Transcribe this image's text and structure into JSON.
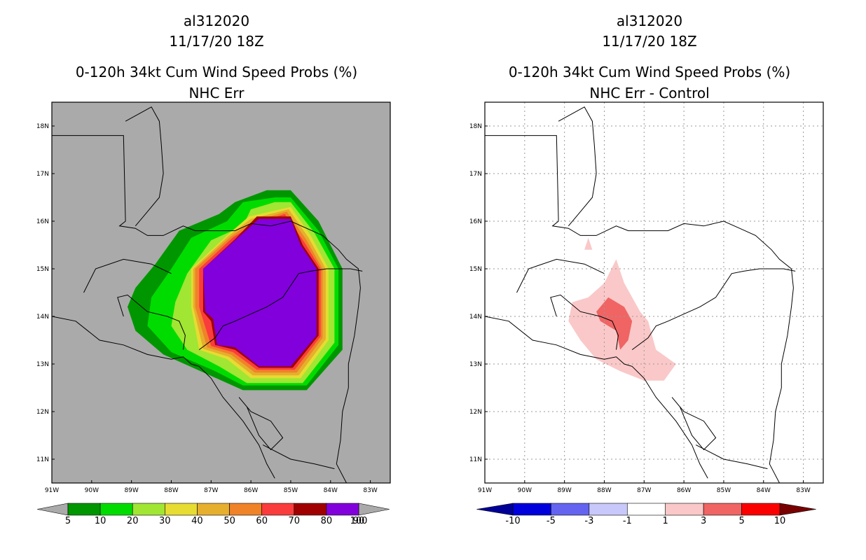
{
  "colors": {
    "land_gray": "#aaaaaa",
    "coast": "#000000",
    "grid": "#9a9a9a"
  },
  "chart_data": [
    {
      "type": "heatmap",
      "id": "left",
      "title_lines": [
        "al312020",
        "11/17/20 18Z",
        "0-120h 34kt Cum Wind Speed Probs (%)",
        "NHC Err"
      ],
      "xlabel": "",
      "ylabel": "",
      "lon_range": [
        -91,
        -82.5
      ],
      "lat_range": [
        10.5,
        18.5
      ],
      "x_ticks": [
        "91W",
        "90W",
        "89W",
        "88W",
        "87W",
        "86W",
        "85W",
        "84W",
        "83W"
      ],
      "y_ticks": [
        "11N",
        "12N",
        "13N",
        "14N",
        "15N",
        "16N",
        "17N",
        "18N"
      ],
      "grid": false,
      "background": "#aaaaaa",
      "colorbar": {
        "labels": [
          "5",
          "10",
          "20",
          "30",
          "40",
          "50",
          "60",
          "70",
          "80",
          "90",
          "100"
        ],
        "colors": [
          "#009600",
          "#00dc00",
          "#a0e632",
          "#e6dc32",
          "#e6af2d",
          "#f08228",
          "#fa3c3c",
          "#a00000",
          "#8200dc"
        ],
        "end_colors": [
          "#aaaaaa",
          "#aaaaaa"
        ]
      },
      "contours": [
        {
          "level": 5,
          "color": "#009600",
          "points": [
            [
              -88.4,
              15.1
            ],
            [
              -87.8,
              15.8
            ],
            [
              -86.8,
              16.15
            ],
            [
              -86.4,
              16.4
            ],
            [
              -85.6,
              16.65
            ],
            [
              -85.0,
              16.65
            ],
            [
              -84.3,
              16.0
            ],
            [
              -83.7,
              15.0
            ],
            [
              -83.7,
              13.3
            ],
            [
              -84.6,
              12.45
            ],
            [
              -86.2,
              12.45
            ],
            [
              -87.0,
              12.75
            ],
            [
              -88.2,
              13.2
            ],
            [
              -88.9,
              13.7
            ],
            [
              -89.1,
              14.2
            ],
            [
              -88.9,
              14.6
            ]
          ]
        },
        {
          "level": 10,
          "color": "#00dc00",
          "points": [
            [
              -88.0,
              15.0
            ],
            [
              -87.5,
              15.65
            ],
            [
              -86.6,
              16.0
            ],
            [
              -86.2,
              16.4
            ],
            [
              -85.4,
              16.5
            ],
            [
              -85.0,
              16.5
            ],
            [
              -84.3,
              15.8
            ],
            [
              -83.8,
              15.0
            ],
            [
              -83.8,
              13.4
            ],
            [
              -84.6,
              12.55
            ],
            [
              -86.2,
              12.55
            ],
            [
              -86.9,
              12.85
            ],
            [
              -88.0,
              13.25
            ],
            [
              -88.6,
              13.8
            ],
            [
              -88.5,
              14.4
            ]
          ]
        },
        {
          "level": 20,
          "color": "#a0e632",
          "points": [
            [
              -87.6,
              14.9
            ],
            [
              -87.0,
              15.6
            ],
            [
              -86.2,
              15.9
            ],
            [
              -86.0,
              16.25
            ],
            [
              -85.4,
              16.4
            ],
            [
              -85.0,
              16.4
            ],
            [
              -84.4,
              15.75
            ],
            [
              -83.9,
              15.0
            ],
            [
              -83.9,
              13.45
            ],
            [
              -84.7,
              12.6
            ],
            [
              -86.1,
              12.6
            ],
            [
              -86.8,
              12.95
            ],
            [
              -87.6,
              13.3
            ],
            [
              -88.0,
              13.8
            ],
            [
              -87.9,
              14.3
            ]
          ]
        },
        {
          "level": 30,
          "color": "#e6dc32",
          "points": [
            [
              -87.5,
              15.0
            ],
            [
              -86.6,
              15.7
            ],
            [
              -86.05,
              16.1
            ],
            [
              -85.0,
              16.3
            ],
            [
              -84.5,
              15.7
            ],
            [
              -84.05,
              15.0
            ],
            [
              -84.05,
              13.5
            ],
            [
              -84.75,
              12.7
            ],
            [
              -86.0,
              12.7
            ],
            [
              -86.6,
              13.1
            ],
            [
              -87.3,
              13.3
            ],
            [
              -87.5,
              14.2
            ]
          ]
        },
        {
          "level": 40,
          "color": "#e6af2d",
          "points": [
            [
              -87.45,
              15.0
            ],
            [
              -86.55,
              15.7
            ],
            [
              -86.0,
              16.05
            ],
            [
              -85.05,
              16.25
            ],
            [
              -84.55,
              15.65
            ],
            [
              -84.12,
              15.0
            ],
            [
              -84.12,
              13.52
            ],
            [
              -84.8,
              12.76
            ],
            [
              -85.95,
              12.76
            ],
            [
              -86.55,
              13.15
            ],
            [
              -87.2,
              13.32
            ],
            [
              -87.45,
              14.2
            ]
          ]
        },
        {
          "level": 50,
          "color": "#f08228",
          "points": [
            [
              -87.4,
              15.0
            ],
            [
              -86.5,
              15.68
            ],
            [
              -85.95,
              16.0
            ],
            [
              -85.1,
              16.2
            ],
            [
              -84.6,
              15.6
            ],
            [
              -84.2,
              15.0
            ],
            [
              -84.2,
              13.55
            ],
            [
              -84.85,
              12.82
            ],
            [
              -85.9,
              12.82
            ],
            [
              -86.5,
              13.2
            ],
            [
              -87.1,
              13.35
            ],
            [
              -87.4,
              14.2
            ]
          ]
        },
        {
          "level": 60,
          "color": "#fa3c3c",
          "points": [
            [
              -87.3,
              15.0
            ],
            [
              -86.45,
              15.66
            ],
            [
              -85.9,
              15.95
            ],
            [
              -85.15,
              16.15
            ],
            [
              -84.65,
              15.55
            ],
            [
              -84.25,
              15.0
            ],
            [
              -84.25,
              13.58
            ],
            [
              -84.9,
              12.88
            ],
            [
              -85.85,
              12.88
            ],
            [
              -86.45,
              13.25
            ],
            [
              -87.0,
              13.38
            ],
            [
              -87.3,
              14.2
            ]
          ]
        },
        {
          "level": 80,
          "color": "#a00000",
          "points": [
            [
              -87.2,
              15.0
            ],
            [
              -86.4,
              15.62
            ],
            [
              -85.85,
              16.1
            ],
            [
              -85.0,
              16.1
            ],
            [
              -84.7,
              15.5
            ],
            [
              -84.3,
              15.0
            ],
            [
              -84.3,
              13.6
            ],
            [
              -84.95,
              12.92
            ],
            [
              -85.8,
              12.92
            ],
            [
              -86.4,
              13.3
            ],
            [
              -86.9,
              13.4
            ],
            [
              -87.0,
              13.9
            ],
            [
              -87.2,
              14.1
            ]
          ]
        },
        {
          "level": 90,
          "color": "#8200dc",
          "points": [
            [
              -87.2,
              15.0
            ],
            [
              -86.4,
              15.6
            ],
            [
              -85.8,
              16.05
            ],
            [
              -85.0,
              16.05
            ],
            [
              -84.75,
              15.5
            ],
            [
              -84.35,
              15.0
            ],
            [
              -84.35,
              13.6
            ],
            [
              -85.0,
              12.95
            ],
            [
              -85.8,
              12.95
            ],
            [
              -86.4,
              13.35
            ],
            [
              -86.85,
              13.4
            ],
            [
              -86.95,
              13.95
            ],
            [
              -87.15,
              14.1
            ]
          ]
        }
      ]
    },
    {
      "type": "heatmap",
      "id": "right",
      "title_lines": [
        "al312020",
        "11/17/20 18Z",
        "0-120h 34kt Cum Wind Speed Probs (%)",
        "NHC Err - Control"
      ],
      "xlabel": "",
      "ylabel": "",
      "lon_range": [
        -91,
        -82.5
      ],
      "lat_range": [
        10.5,
        18.5
      ],
      "x_ticks": [
        "91W",
        "90W",
        "89W",
        "88W",
        "87W",
        "86W",
        "85W",
        "84W",
        "83W"
      ],
      "y_ticks": [
        "11N",
        "12N",
        "13N",
        "14N",
        "15N",
        "16N",
        "17N",
        "18N"
      ],
      "grid": true,
      "background": "#ffffff",
      "colorbar": {
        "labels": [
          "-10",
          "-5",
          "-3",
          "-1",
          "1",
          "3",
          "5",
          "10"
        ],
        "colors": [
          "#0000dc",
          "#6464f0",
          "#c8c8fa",
          "#ffffff",
          "#fac8c8",
          "#f06464",
          "#fa0000"
        ],
        "end_colors": [
          "#000096",
          "#780000"
        ]
      },
      "contours": [
        {
          "level": 1,
          "color": "#fac8c8",
          "points": [
            [
              -88.5,
              15.4
            ],
            [
              -88.4,
              15.65
            ],
            [
              -88.3,
              15.4
            ]
          ]
        },
        {
          "level": 1,
          "color": "#fac8c8",
          "points": [
            [
              -88.4,
              14.4
            ],
            [
              -88.0,
              14.7
            ],
            [
              -87.7,
              15.2
            ],
            [
              -87.5,
              14.7
            ],
            [
              -87.1,
              14.1
            ],
            [
              -86.9,
              13.9
            ],
            [
              -86.7,
              13.3
            ],
            [
              -86.2,
              13.0
            ],
            [
              -86.5,
              12.65
            ],
            [
              -87.0,
              12.65
            ],
            [
              -87.6,
              12.85
            ],
            [
              -88.2,
              13.1
            ],
            [
              -88.6,
              13.5
            ],
            [
              -88.9,
              13.9
            ],
            [
              -88.8,
              14.3
            ]
          ]
        },
        {
          "level": 3,
          "color": "#f06464",
          "points": [
            [
              -88.2,
              14.1
            ],
            [
              -87.9,
              14.4
            ],
            [
              -87.5,
              14.2
            ],
            [
              -87.3,
              13.9
            ],
            [
              -87.4,
              13.5
            ],
            [
              -87.6,
              13.3
            ],
            [
              -87.7,
              13.7
            ],
            [
              -88.1,
              13.9
            ]
          ]
        }
      ]
    }
  ]
}
